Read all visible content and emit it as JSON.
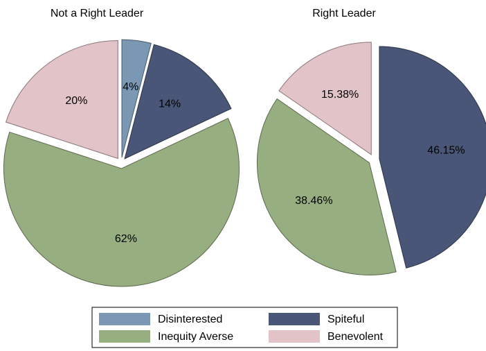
{
  "chart_data": [
    {
      "type": "pie",
      "title": "Not a Right Leader",
      "categories": [
        "Disinterested",
        "Spiteful",
        "Inequity Averse",
        "Benevolent"
      ],
      "values": [
        4,
        14,
        62,
        20
      ],
      "value_labels": [
        "4%",
        "14%",
        "62%",
        "20%"
      ],
      "colors": [
        "#7a97b4",
        "#4a5677",
        "#97ae80",
        "#e2c3c7"
      ]
    },
    {
      "type": "pie",
      "title": "Right Leader",
      "categories": [
        "Spiteful",
        "Inequity Averse",
        "Benevolent"
      ],
      "values": [
        46.15,
        38.46,
        15.38
      ],
      "value_labels": [
        "46.15%",
        "38.46%",
        "15.38%"
      ],
      "colors": [
        "#4a5677",
        "#97ae80",
        "#e2c3c7"
      ]
    }
  ]
}
